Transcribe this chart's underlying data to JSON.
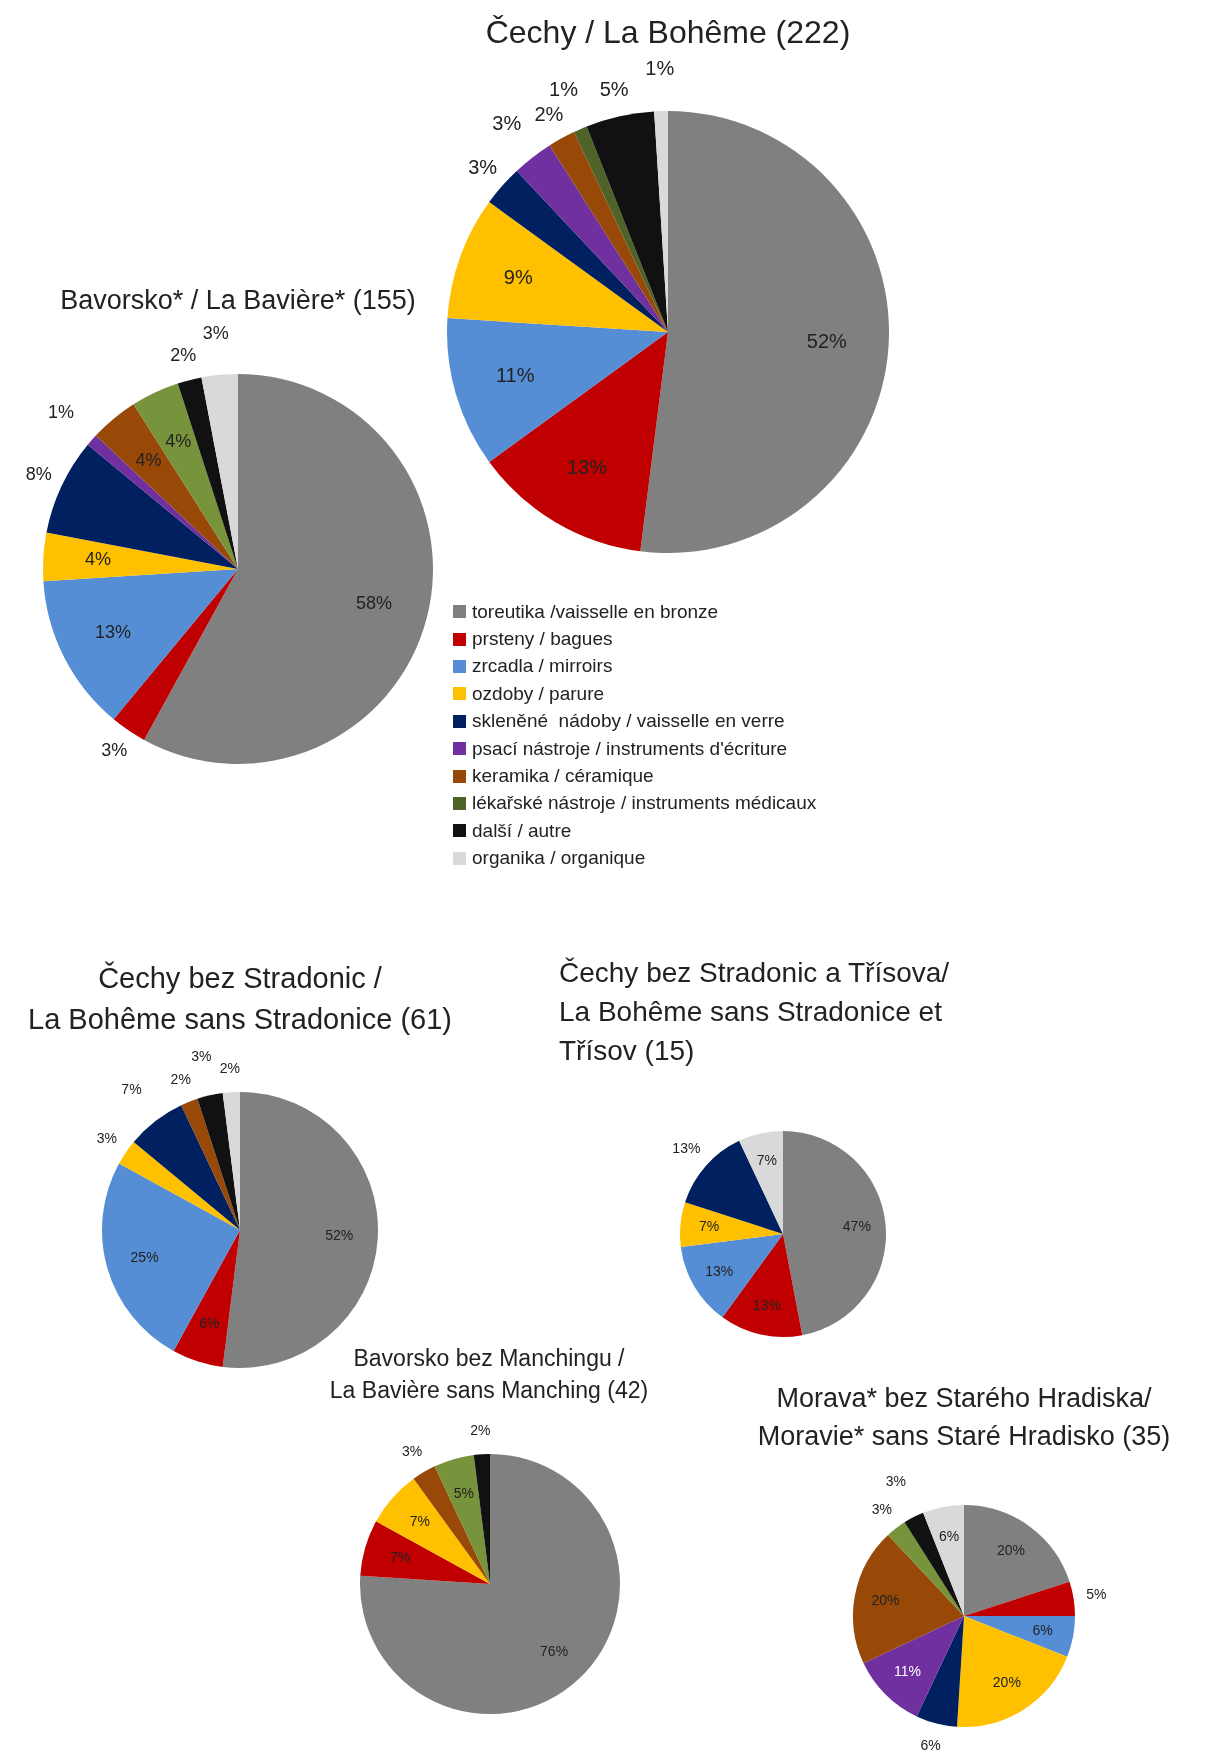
{
  "chart_data": [
    {
      "type": "pie",
      "title": "Čechy / La Bohême (222)",
      "legend": "bottom",
      "categories": [
        "toreutika /vaisselle en bronze",
        "prsteny / bagues",
        "zrcadla / mirroirs",
        "ozdoby / parure",
        "skleněné  nádoby / vaisselle en verre",
        "psací nástroje / instruments d'écriture",
        "keramika / céramique",
        "lékařské nástroje / instruments médicaux",
        "další / autre",
        "organika / organique"
      ],
      "values": [
        52,
        13,
        11,
        9,
        3,
        3,
        2,
        1,
        5,
        1
      ],
      "value_labels": [
        "52%",
        "13%",
        "11%",
        "9%",
        "3%",
        "3%",
        "2%",
        "1%",
        "5%",
        "1%"
      ],
      "colors": [
        "#808080",
        "#c00000",
        "#558ed5",
        "#ffc000",
        "#002060",
        "#7030a0",
        "#984807",
        "#4f6228",
        "#111111",
        "#d9d9d9"
      ]
    },
    {
      "type": "pie",
      "title": "Bavorsko* / La Bavière* (155)",
      "categories": [
        null,
        null,
        null,
        null,
        null,
        null,
        null,
        null,
        null,
        null
      ],
      "values": [
        58,
        3,
        13,
        4,
        8,
        1,
        4,
        4,
        2,
        3
      ],
      "value_labels": [
        "58%",
        "3%",
        "13%",
        "4%",
        "8%",
        "1%",
        "4%",
        "4%",
        "2%",
        "3%"
      ],
      "colors": [
        "#808080",
        "#c00000",
        "#558ed5",
        "#ffc000",
        "#002060",
        "#7030a0",
        "#984807",
        "#77933c",
        "#111111",
        "#d9d9d9"
      ]
    },
    {
      "type": "pie",
      "title": "Čechy bez Stradonic /\nLa Bohême sans Stradonice (61)",
      "categories": [
        null,
        null,
        null,
        null,
        null,
        null,
        null,
        null
      ],
      "values": [
        52,
        6,
        25,
        3,
        7,
        2,
        3,
        2
      ],
      "value_labels": [
        "52%",
        "6%",
        "25%",
        "3%",
        "7%",
        "2%",
        "3%",
        "2%"
      ],
      "colors": [
        "#808080",
        "#c00000",
        "#558ed5",
        "#ffc000",
        "#002060",
        "#984807",
        "#111111",
        "#d9d9d9"
      ]
    },
    {
      "type": "pie",
      "title": "Čechy bez Stradonic a Třísova/\nLa Bohême sans Stradonice et\nTřísov (15)",
      "categories": [
        null,
        null,
        null,
        null,
        null,
        null
      ],
      "values": [
        47,
        13,
        13,
        7,
        13,
        7
      ],
      "value_labels": [
        "47%",
        "13%",
        "13%",
        "7%",
        "13%",
        "7%"
      ],
      "colors": [
        "#808080",
        "#c00000",
        "#558ed5",
        "#ffc000",
        "#002060",
        "#d9d9d9"
      ]
    },
    {
      "type": "pie",
      "title": "Bavorsko bez Manchingu /\nLa Bavière sans Manching (42)",
      "categories": [
        null,
        null,
        null,
        null,
        null,
        null
      ],
      "values": [
        76,
        7,
        7,
        3,
        5,
        2
      ],
      "value_labels": [
        "76%",
        "7%",
        "7%",
        "3%",
        "5%",
        "2%"
      ],
      "colors": [
        "#808080",
        "#c00000",
        "#ffc000",
        "#984807",
        "#77933c",
        "#111111"
      ]
    },
    {
      "type": "pie",
      "title": "Morava* bez Starého Hradiska/\nMoravie* sans Staré Hradisko (35)",
      "categories": [
        null,
        null,
        null,
        null,
        null,
        null,
        null,
        null,
        null,
        null
      ],
      "values": [
        20,
        5,
        6,
        20,
        6,
        11,
        20,
        3,
        3,
        6
      ],
      "value_labels": [
        "20%",
        "5%",
        "6%",
        "20%",
        "6%",
        "11%",
        "20%",
        "3%",
        "3%",
        "6%"
      ],
      "colors": [
        "#808080",
        "#c00000",
        "#558ed5",
        "#ffc000",
        "#002060",
        "#7030a0",
        "#984807",
        "#77933c",
        "#111111",
        "#d9d9d9"
      ]
    }
  ]
}
